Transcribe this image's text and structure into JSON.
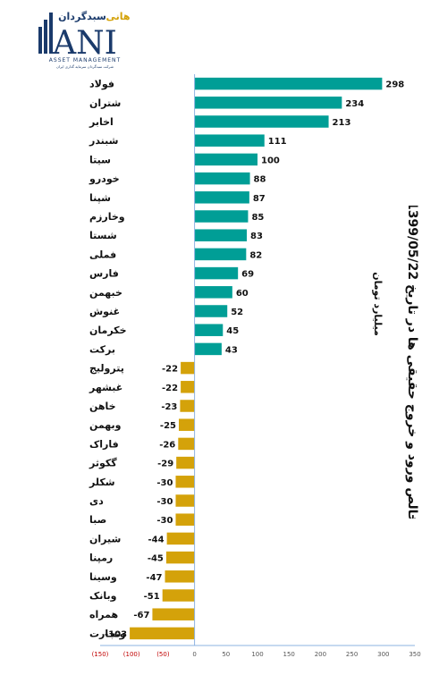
{
  "logo": {
    "name_fa": "سبدگردان",
    "brand_fa": "هانی",
    "brand_en": "ANI",
    "tagline": "ASSET MANAGEMENT",
    "subtitle_fa": "شرکت سبدگردان سرمایه گذاری ایران"
  },
  "title": "خالص ورود و خروج حقیقی ها در تاریخ 1399/05/22",
  "unit": "میلیارد تومان",
  "colors": {
    "positive": "#009e96",
    "negative": "#d4a20a",
    "axis": "#8db3e2"
  },
  "chart_data": {
    "type": "bar",
    "orientation": "horizontal",
    "categories": [
      "فولاد",
      "شتران",
      "اخابر",
      "شبندر",
      "سیتا",
      "خودرو",
      "شپنا",
      "وخارزم",
      "شستا",
      "فملی",
      "فارس",
      "خبهمن",
      "غنوش",
      "خکرمان",
      "برکت",
      "پترولیج",
      "غبشهر",
      "خاهن",
      "وبهمن",
      "فاراک",
      "گکوثر",
      "شکلر",
      "دی",
      "صبا",
      "شیران",
      "رمپنا",
      "وسینا",
      "وبانک",
      "همراه",
      "وتجارت"
    ],
    "values": [
      298,
      234,
      213,
      111,
      100,
      88,
      87,
      85,
      83,
      82,
      69,
      60,
      52,
      45,
      43,
      -22,
      -22,
      -23,
      -25,
      -26,
      -29,
      -30,
      -30,
      -30,
      -44,
      -45,
      -47,
      -51,
      -67,
      -103
    ],
    "value_labels": [
      "298",
      "234",
      "213",
      "111",
      "100",
      "88",
      "87",
      "85",
      "83",
      "82",
      "69",
      "60",
      "52",
      "45",
      "43",
      "-22",
      "-22",
      "-23",
      "-25",
      "-26",
      "-29",
      "-30",
      "-30",
      "-30",
      "-44",
      "-45",
      "-47",
      "-51",
      "-67",
      "-103"
    ],
    "xlim": [
      -150,
      350
    ],
    "xticks": [
      -150,
      -100,
      -50,
      0,
      50,
      100,
      150,
      200,
      250,
      300,
      350
    ],
    "xtick_labels": [
      "(150)",
      "(100)",
      "(50)",
      "0",
      "50",
      "100",
      "150",
      "200",
      "250",
      "300",
      "350"
    ],
    "grid": false,
    "legend": "none"
  }
}
